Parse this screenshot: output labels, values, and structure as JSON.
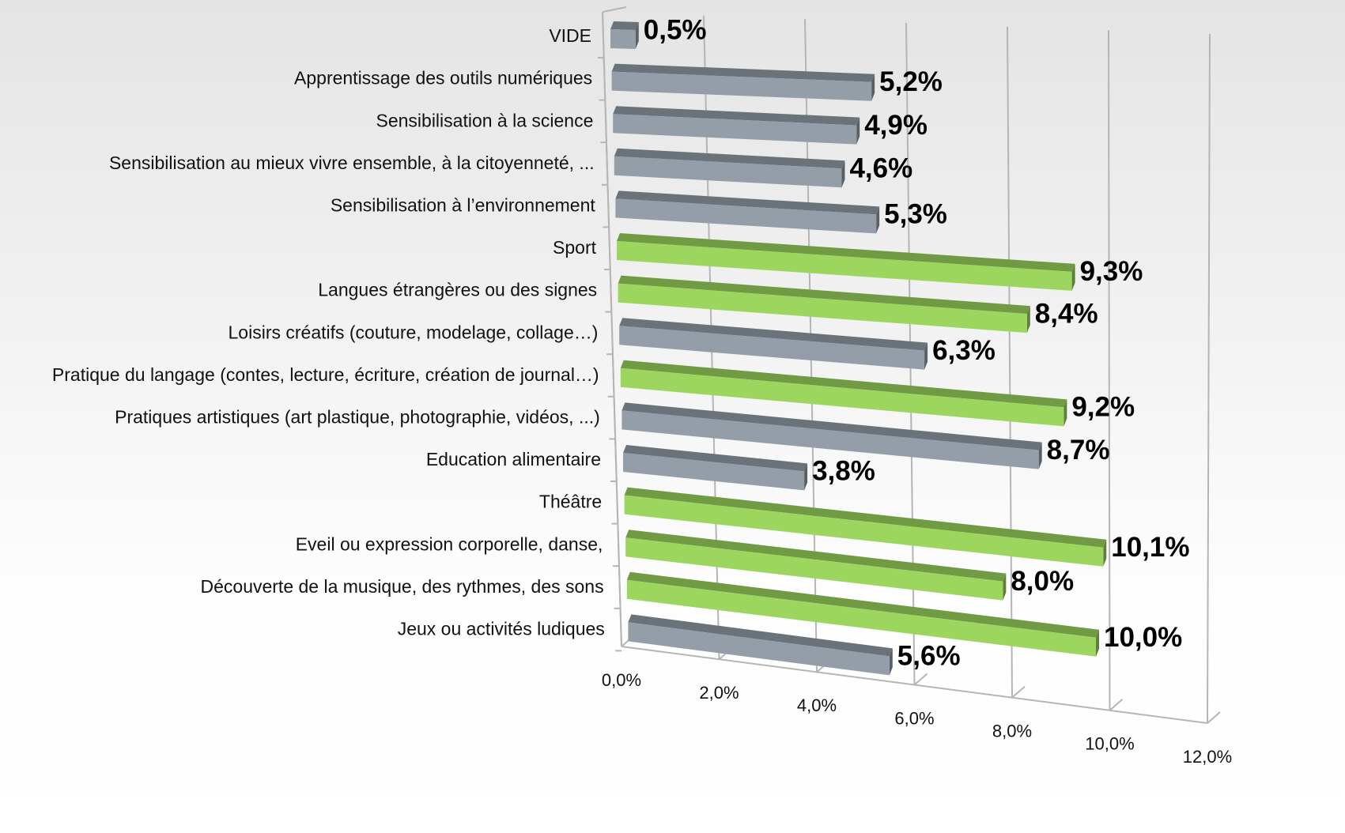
{
  "chart_data": {
    "type": "bar3d",
    "categories": [
      "VIDE",
      "Apprentissage des outils numériques",
      "Sensibilisation à la science",
      "Sensibilisation au mieux vivre ensemble, à la citoyenneté, ...",
      "Sensibilisation à l’environnement",
      "Sport",
      "Langues étrangères ou des signes",
      "Loisirs créatifs (couture, modelage, collage…)",
      "Pratique du langage (contes, lecture, écriture, création de journal…)",
      "Pratiques artistiques (art plastique, photographie, vidéos, ...)",
      "Education alimentaire",
      "Théâtre",
      "Eveil ou expression corporelle, danse,",
      "Découverte de la musique, des rythmes, des sons",
      "Jeux ou activités ludiques"
    ],
    "values": [
      0.5,
      5.2,
      4.9,
      4.6,
      5.3,
      9.3,
      8.4,
      6.3,
      9.2,
      8.7,
      3.8,
      10.1,
      8.0,
      10.0,
      5.6
    ],
    "value_labels": [
      "0,5%",
      "5,2%",
      "4,9%",
      "4,6%",
      "5,3%",
      "9,3%",
      "8,4%",
      "6,3%",
      "9,2%",
      "8,7%",
      "3,8%",
      "10,1%",
      "8,0%",
      "10,0%",
      "5,6%"
    ],
    "colors": [
      "#939ea9",
      "#939ea9",
      "#939ea9",
      "#939ea9",
      "#939ea9",
      "#9dd65f",
      "#9dd65f",
      "#939ea9",
      "#9dd65f",
      "#939ea9",
      "#939ea9",
      "#9dd65f",
      "#9dd65f",
      "#9dd65f",
      "#939ea9"
    ],
    "xlim": [
      0,
      12
    ],
    "xticks": [
      {
        "value": 0,
        "label": "0,0%"
      },
      {
        "value": 2,
        "label": "2,0%"
      },
      {
        "value": 4,
        "label": "4,0%"
      },
      {
        "value": 6,
        "label": "6,0%"
      },
      {
        "value": 8,
        "label": "8,0%"
      },
      {
        "value": 10,
        "label": "10,0%"
      },
      {
        "value": 12,
        "label": "12,0%"
      }
    ],
    "grid": true
  }
}
